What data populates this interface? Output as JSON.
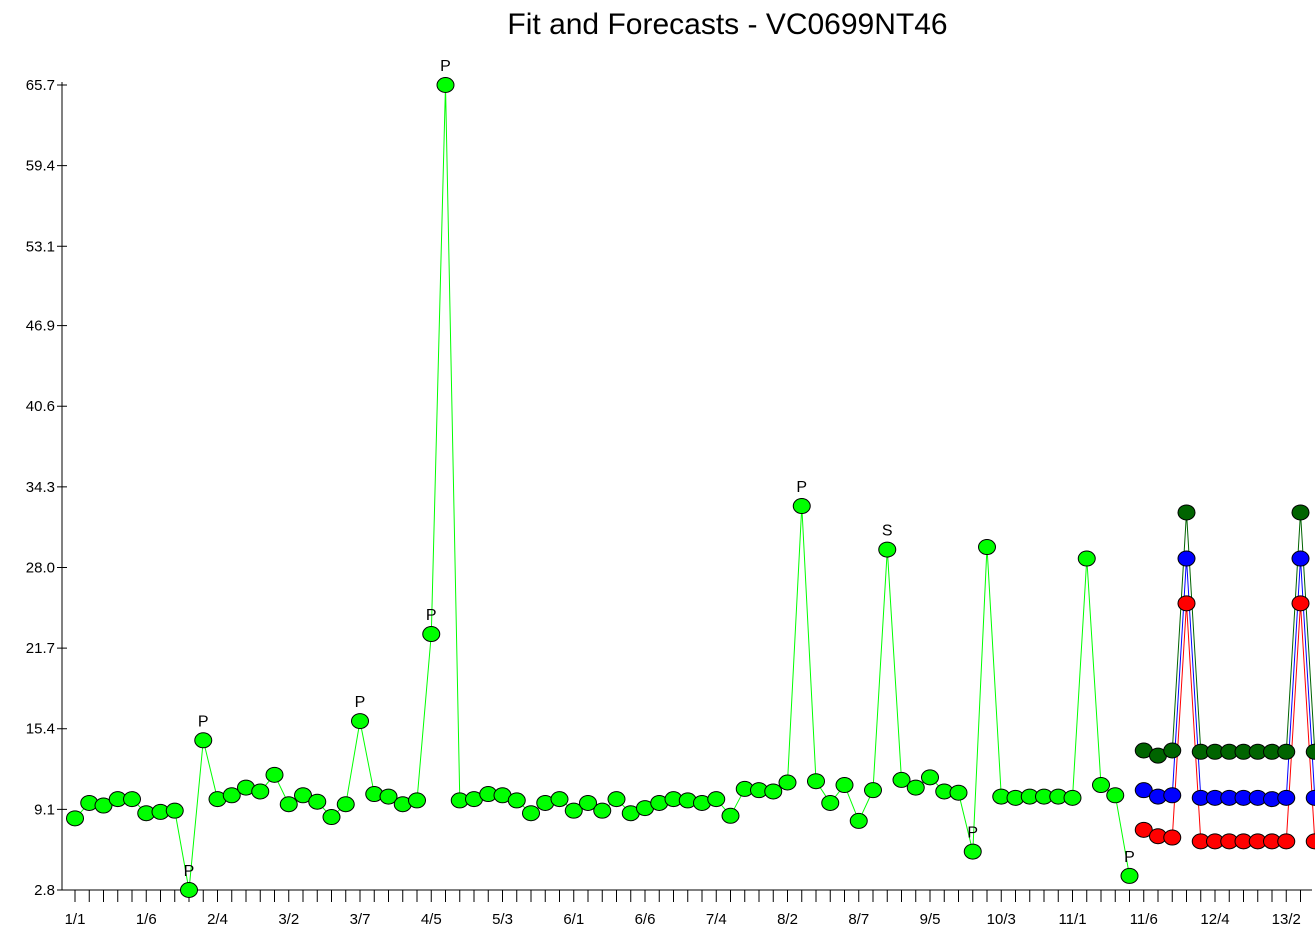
{
  "chart_data": {
    "type": "line",
    "title": "Fit and Forecasts - VC0699NT46",
    "xlabel": "",
    "ylabel": "",
    "ylim": [
      2.8,
      65.7
    ],
    "yticks": [
      "2.8",
      "9.1",
      "15.4",
      "21.7",
      "28.0",
      "34.3",
      "40.6",
      "46.9",
      "53.1",
      "59.4",
      "65.7"
    ],
    "xtick_labels": [
      "1/1",
      "1/6",
      "2/4",
      "3/2",
      "3/7",
      "4/5",
      "5/3",
      "6/1",
      "6/6",
      "7/4",
      "8/2",
      "8/7",
      "9/5",
      "10/3",
      "11/1",
      "11/6",
      "12/4",
      "13/2"
    ],
    "grid": false,
    "colors": {
      "history": "#00ff00",
      "upper": "#006400",
      "forecast": "#0000ff",
      "lower": "#ff0000",
      "marker_edge": "#000000"
    },
    "history": {
      "start_period": "1/1",
      "values": [
        8.4,
        9.6,
        9.4,
        9.9,
        9.9,
        8.8,
        8.9,
        9.0,
        2.8,
        14.5,
        9.9,
        10.2,
        10.8,
        10.5,
        11.8,
        9.5,
        10.2,
        9.7,
        8.5,
        9.5,
        16.0,
        10.3,
        10.1,
        9.5,
        9.8,
        22.8,
        65.7,
        9.8,
        9.9,
        10.3,
        10.2,
        9.8,
        8.8,
        9.6,
        9.9,
        9.0,
        9.6,
        9.0,
        9.9,
        8.8,
        9.2,
        9.6,
        9.9,
        9.8,
        9.6,
        9.9,
        8.6,
        10.7,
        10.6,
        10.5,
        11.2,
        32.8,
        11.3,
        9.6,
        11.0,
        8.2,
        10.6,
        29.4,
        11.4,
        10.8,
        11.6,
        10.5,
        10.4,
        5.8,
        29.6,
        10.1,
        10.0,
        10.1,
        10.1,
        10.1,
        10.0,
        28.7,
        11.0,
        10.2,
        3.9
      ],
      "annotations": [
        {
          "period_index": 8,
          "label": "P"
        },
        {
          "period_index": 9,
          "label": "P"
        },
        {
          "period_index": 20,
          "label": "P"
        },
        {
          "period_index": 25,
          "label": "P"
        },
        {
          "period_index": 26,
          "label": "P"
        },
        {
          "period_index": 51,
          "label": "P"
        },
        {
          "period_index": 57,
          "label": "S"
        },
        {
          "period_index": 63,
          "label": "P"
        },
        {
          "period_index": 74,
          "label": "P"
        }
      ]
    },
    "forecast_start_index": 75,
    "series": [
      {
        "values": [
          13.7,
          13.3,
          13.7,
          32.3,
          13.6,
          13.6,
          13.6,
          13.6,
          13.6,
          13.6,
          13.6,
          32.3,
          13.6
        ],
        "style": "upper"
      },
      {
        "values": [
          10.6,
          10.1,
          10.2,
          28.7,
          10.0,
          10.0,
          10.0,
          10.0,
          10.0,
          9.9,
          10.0,
          28.7,
          10.0
        ],
        "style": "forecast"
      },
      {
        "values": [
          7.5,
          7.0,
          6.9,
          25.2,
          6.6,
          6.6,
          6.6,
          6.6,
          6.6,
          6.6,
          6.6,
          25.2,
          6.6
        ],
        "style": "lower"
      }
    ]
  }
}
